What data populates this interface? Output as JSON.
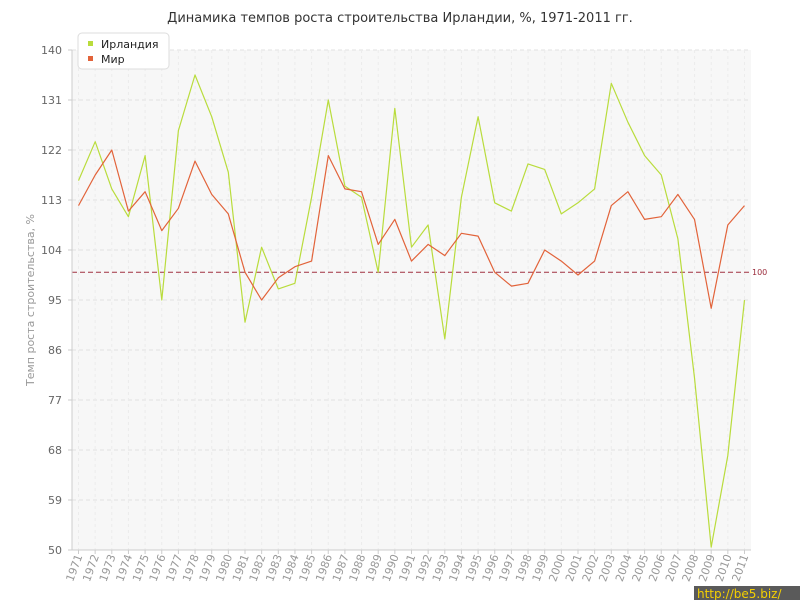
{
  "chart_data": {
    "type": "line",
    "title": "Динамика темпов роста строительства Ирландии, %, 1971-2011 гг.",
    "xlabel": "",
    "ylabel": "Темп роста строительства, %",
    "categories": [
      "1971",
      "1972",
      "1973",
      "1974",
      "1975",
      "1976",
      "1977",
      "1978",
      "1979",
      "1980",
      "1981",
      "1982",
      "1983",
      "1984",
      "1985",
      "1986",
      "1987",
      "1988",
      "1989",
      "1990",
      "1991",
      "1992",
      "1993",
      "1994",
      "1995",
      "1996",
      "1997",
      "1998",
      "1999",
      "2000",
      "2001",
      "2002",
      "2003",
      "2004",
      "2005",
      "2006",
      "2007",
      "2008",
      "2009",
      "2010",
      "2011"
    ],
    "yticks": [
      50,
      59,
      68,
      77,
      86,
      95,
      104,
      113,
      122,
      131,
      140
    ],
    "ylim": [
      50,
      140
    ],
    "grid": true,
    "legend_position": "top-left",
    "reference_line": {
      "value": 100,
      "label": "100",
      "color": "#a03040"
    },
    "series": [
      {
        "name": "Ирландия",
        "color": "#b9dc3c",
        "values": [
          116.5,
          123.5,
          115,
          110,
          121,
          95,
          125.5,
          135.5,
          128,
          118,
          91,
          104.5,
          97,
          98,
          113.5,
          131,
          115.5,
          113.5,
          100,
          129.5,
          104.5,
          108.5,
          88,
          113.5,
          128,
          112.5,
          111,
          119.5,
          118.5,
          110.5,
          112.5,
          115,
          134,
          127,
          121,
          117.5,
          106,
          81,
          50.5,
          67,
          95
        ]
      },
      {
        "name": "Мир",
        "color": "#e2633a",
        "values": [
          112,
          117.5,
          122,
          111,
          114.5,
          107.5,
          111.5,
          120,
          114,
          110.5,
          100,
          95,
          99,
          101,
          102,
          121,
          115,
          114.5,
          105,
          109.5,
          102,
          105,
          103,
          107,
          106.5,
          100,
          97.5,
          98,
          104,
          102,
          99.5,
          102,
          112,
          114.5,
          109.5,
          110,
          114,
          109.5,
          93.5,
          108.5,
          112
        ]
      }
    ]
  },
  "watermark": "http://be5.biz/"
}
